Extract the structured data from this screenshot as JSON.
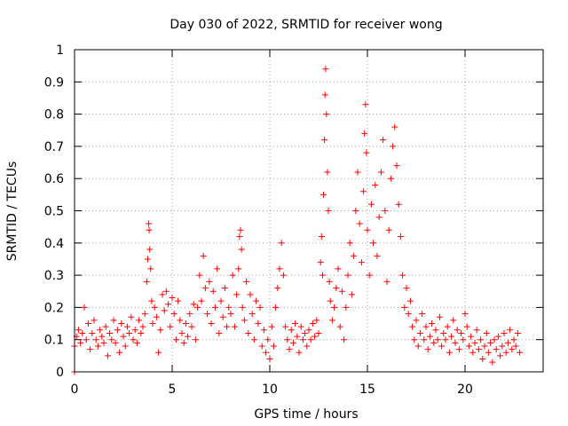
{
  "chart_data": {
    "type": "scatter",
    "title": "Day 030 of 2022, SRMTID for receiver wong",
    "xlabel": "GPS time / hours",
    "ylabel": "SRMTID / TECUs",
    "xlim": [
      0,
      24
    ],
    "ylim": [
      0,
      1
    ],
    "xticks": [
      "0",
      "5",
      "10",
      "15",
      "20"
    ],
    "xtick_values": [
      0,
      5,
      10,
      15,
      20
    ],
    "yticks": [
      "0",
      "0.1",
      "0.2",
      "0.3",
      "0.4",
      "0.5",
      "0.6",
      "0.7",
      "0.8",
      "0.9",
      "1"
    ],
    "ytick_values": [
      0,
      0.1,
      0.2,
      0.3,
      0.4,
      0.5,
      0.6,
      0.7,
      0.8,
      0.9,
      1.0
    ],
    "grid": true,
    "marker": "plus",
    "color": "#ff0000",
    "points": [
      [
        0.0,
        0.0
      ],
      [
        0.0,
        0.08
      ],
      [
        0.1,
        0.11
      ],
      [
        0.2,
        0.13
      ],
      [
        0.3,
        0.09
      ],
      [
        0.4,
        0.12
      ],
      [
        0.5,
        0.2
      ],
      [
        0.6,
        0.1
      ],
      [
        0.7,
        0.15
      ],
      [
        0.8,
        0.07
      ],
      [
        0.9,
        0.12
      ],
      [
        1.0,
        0.16
      ],
      [
        1.1,
        0.1
      ],
      [
        1.2,
        0.08
      ],
      [
        1.3,
        0.13
      ],
      [
        1.4,
        0.11
      ],
      [
        1.5,
        0.09
      ],
      [
        1.6,
        0.14
      ],
      [
        1.7,
        0.05
      ],
      [
        1.8,
        0.12
      ],
      [
        1.9,
        0.1
      ],
      [
        2.0,
        0.16
      ],
      [
        2.1,
        0.09
      ],
      [
        2.2,
        0.13
      ],
      [
        2.3,
        0.06
      ],
      [
        2.4,
        0.15
      ],
      [
        2.5,
        0.11
      ],
      [
        2.6,
        0.08
      ],
      [
        2.7,
        0.14
      ],
      [
        2.8,
        0.12
      ],
      [
        2.9,
        0.17
      ],
      [
        3.0,
        0.1
      ],
      [
        3.1,
        0.13
      ],
      [
        3.2,
        0.09
      ],
      [
        3.3,
        0.16
      ],
      [
        3.4,
        0.12
      ],
      [
        3.5,
        0.14
      ],
      [
        3.6,
        0.18
      ],
      [
        3.7,
        0.28
      ],
      [
        3.75,
        0.35
      ],
      [
        3.8,
        0.46
      ],
      [
        3.82,
        0.44
      ],
      [
        3.85,
        0.38
      ],
      [
        3.9,
        0.32
      ],
      [
        3.95,
        0.22
      ],
      [
        4.0,
        0.15
      ],
      [
        4.1,
        0.2
      ],
      [
        4.2,
        0.17
      ],
      [
        4.3,
        0.06
      ],
      [
        4.4,
        0.13
      ],
      [
        4.5,
        0.24
      ],
      [
        4.6,
        0.19
      ],
      [
        4.7,
        0.25
      ],
      [
        4.8,
        0.21
      ],
      [
        4.9,
        0.14
      ],
      [
        5.0,
        0.23
      ],
      [
        5.1,
        0.18
      ],
      [
        5.2,
        0.1
      ],
      [
        5.3,
        0.22
      ],
      [
        5.4,
        0.16
      ],
      [
        5.5,
        0.12
      ],
      [
        5.6,
        0.09
      ],
      [
        5.7,
        0.15
      ],
      [
        5.8,
        0.11
      ],
      [
        5.9,
        0.18
      ],
      [
        6.0,
        0.14
      ],
      [
        6.1,
        0.21
      ],
      [
        6.2,
        0.1
      ],
      [
        6.3,
        0.2
      ],
      [
        6.4,
        0.3
      ],
      [
        6.5,
        0.22
      ],
      [
        6.6,
        0.36
      ],
      [
        6.7,
        0.26
      ],
      [
        6.8,
        0.18
      ],
      [
        6.9,
        0.28
      ],
      [
        7.0,
        0.15
      ],
      [
        7.1,
        0.25
      ],
      [
        7.2,
        0.2
      ],
      [
        7.3,
        0.32
      ],
      [
        7.4,
        0.12
      ],
      [
        7.5,
        0.22
      ],
      [
        7.6,
        0.17
      ],
      [
        7.7,
        0.26
      ],
      [
        7.8,
        0.14
      ],
      [
        7.9,
        0.2
      ],
      [
        8.0,
        0.18
      ],
      [
        8.1,
        0.3
      ],
      [
        8.2,
        0.14
      ],
      [
        8.3,
        0.24
      ],
      [
        8.4,
        0.32
      ],
      [
        8.45,
        0.42
      ],
      [
        8.5,
        0.44
      ],
      [
        8.55,
        0.38
      ],
      [
        8.6,
        0.2
      ],
      [
        8.7,
        0.16
      ],
      [
        8.8,
        0.28
      ],
      [
        8.9,
        0.12
      ],
      [
        9.0,
        0.24
      ],
      [
        9.1,
        0.18
      ],
      [
        9.2,
        0.1
      ],
      [
        9.3,
        0.22
      ],
      [
        9.4,
        0.15
      ],
      [
        9.5,
        0.2
      ],
      [
        9.6,
        0.08
      ],
      [
        9.7,
        0.13
      ],
      [
        9.8,
        0.06
      ],
      [
        9.9,
        0.1
      ],
      [
        10.0,
        0.04
      ],
      [
        10.1,
        0.14
      ],
      [
        10.2,
        0.08
      ],
      [
        10.3,
        0.2
      ],
      [
        10.4,
        0.26
      ],
      [
        10.5,
        0.32
      ],
      [
        10.6,
        0.4
      ],
      [
        10.7,
        0.3
      ],
      [
        10.8,
        0.14
      ],
      [
        10.9,
        0.1
      ],
      [
        11.0,
        0.07
      ],
      [
        11.1,
        0.13
      ],
      [
        11.2,
        0.09
      ],
      [
        11.3,
        0.15
      ],
      [
        11.4,
        0.11
      ],
      [
        11.5,
        0.06
      ],
      [
        11.6,
        0.14
      ],
      [
        11.7,
        0.1
      ],
      [
        11.8,
        0.12
      ],
      [
        11.9,
        0.08
      ],
      [
        12.0,
        0.13
      ],
      [
        12.1,
        0.1
      ],
      [
        12.2,
        0.15
      ],
      [
        12.3,
        0.11
      ],
      [
        12.4,
        0.16
      ],
      [
        12.5,
        0.12
      ],
      [
        12.6,
        0.34
      ],
      [
        12.65,
        0.42
      ],
      [
        12.7,
        0.3
      ],
      [
        12.75,
        0.55
      ],
      [
        12.8,
        0.72
      ],
      [
        12.83,
        0.86
      ],
      [
        12.86,
        0.94
      ],
      [
        12.9,
        0.8
      ],
      [
        12.95,
        0.62
      ],
      [
        13.0,
        0.5
      ],
      [
        13.05,
        0.28
      ],
      [
        13.1,
        0.22
      ],
      [
        13.2,
        0.16
      ],
      [
        13.3,
        0.2
      ],
      [
        13.4,
        0.26
      ],
      [
        13.5,
        0.32
      ],
      [
        13.6,
        0.14
      ],
      [
        13.7,
        0.25
      ],
      [
        13.8,
        0.1
      ],
      [
        13.9,
        0.2
      ],
      [
        14.0,
        0.3
      ],
      [
        14.1,
        0.4
      ],
      [
        14.2,
        0.24
      ],
      [
        14.3,
        0.36
      ],
      [
        14.4,
        0.5
      ],
      [
        14.5,
        0.62
      ],
      [
        14.6,
        0.46
      ],
      [
        14.7,
        0.34
      ],
      [
        14.8,
        0.56
      ],
      [
        14.85,
        0.74
      ],
      [
        14.9,
        0.83
      ],
      [
        14.95,
        0.68
      ],
      [
        15.0,
        0.44
      ],
      [
        15.1,
        0.3
      ],
      [
        15.2,
        0.52
      ],
      [
        15.3,
        0.4
      ],
      [
        15.4,
        0.58
      ],
      [
        15.5,
        0.36
      ],
      [
        15.6,
        0.48
      ],
      [
        15.7,
        0.62
      ],
      [
        15.8,
        0.72
      ],
      [
        15.9,
        0.5
      ],
      [
        16.0,
        0.28
      ],
      [
        16.1,
        0.44
      ],
      [
        16.2,
        0.6
      ],
      [
        16.3,
        0.7
      ],
      [
        16.4,
        0.76
      ],
      [
        16.5,
        0.64
      ],
      [
        16.6,
        0.52
      ],
      [
        16.7,
        0.42
      ],
      [
        16.8,
        0.3
      ],
      [
        16.9,
        0.2
      ],
      [
        17.0,
        0.26
      ],
      [
        17.1,
        0.18
      ],
      [
        17.2,
        0.22
      ],
      [
        17.3,
        0.14
      ],
      [
        17.4,
        0.1
      ],
      [
        17.5,
        0.16
      ],
      [
        17.6,
        0.08
      ],
      [
        17.7,
        0.12
      ],
      [
        17.8,
        0.18
      ],
      [
        17.9,
        0.1
      ],
      [
        18.0,
        0.14
      ],
      [
        18.1,
        0.07
      ],
      [
        18.2,
        0.11
      ],
      [
        18.3,
        0.15
      ],
      [
        18.4,
        0.09
      ],
      [
        18.5,
        0.13
      ],
      [
        18.6,
        0.1
      ],
      [
        18.7,
        0.17
      ],
      [
        18.8,
        0.08
      ],
      [
        18.9,
        0.12
      ],
      [
        19.0,
        0.1
      ],
      [
        19.1,
        0.14
      ],
      [
        19.2,
        0.06
      ],
      [
        19.3,
        0.11
      ],
      [
        19.4,
        0.16
      ],
      [
        19.5,
        0.09
      ],
      [
        19.6,
        0.13
      ],
      [
        19.7,
        0.07
      ],
      [
        19.8,
        0.12
      ],
      [
        19.9,
        0.1
      ],
      [
        20.0,
        0.18
      ],
      [
        20.1,
        0.14
      ],
      [
        20.2,
        0.08
      ],
      [
        20.3,
        0.11
      ],
      [
        20.4,
        0.06
      ],
      [
        20.5,
        0.09
      ],
      [
        20.6,
        0.13
      ],
      [
        20.7,
        0.07
      ],
      [
        20.8,
        0.1
      ],
      [
        20.9,
        0.04
      ],
      [
        21.0,
        0.08
      ],
      [
        21.1,
        0.12
      ],
      [
        21.2,
        0.06
      ],
      [
        21.3,
        0.09
      ],
      [
        21.4,
        0.03
      ],
      [
        21.5,
        0.1
      ],
      [
        21.6,
        0.07
      ],
      [
        21.7,
        0.11
      ],
      [
        21.8,
        0.05
      ],
      [
        21.9,
        0.08
      ],
      [
        22.0,
        0.12
      ],
      [
        22.1,
        0.06
      ],
      [
        22.2,
        0.09
      ],
      [
        22.3,
        0.13
      ],
      [
        22.4,
        0.07
      ],
      [
        22.5,
        0.1
      ],
      [
        22.6,
        0.08
      ],
      [
        22.7,
        0.12
      ],
      [
        22.8,
        0.06
      ]
    ]
  }
}
